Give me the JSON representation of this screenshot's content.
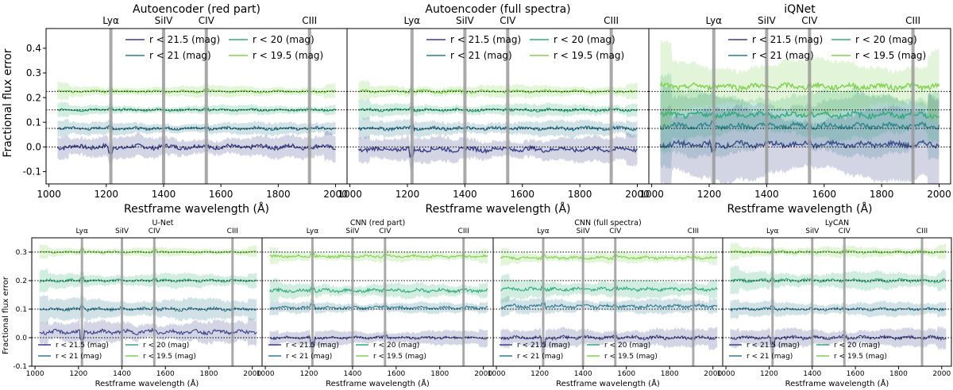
{
  "figure": {
    "ylabel_top": "Fractional flux error",
    "ylabel_bottom": "Fractional flux error",
    "xlabel": "Restframe wavelength (Å)"
  },
  "colors": {
    "r21_5": "#3b3f86",
    "r21": "#2f7a93",
    "r20": "#2eab7c",
    "r19_5": "#7ed24d",
    "line": "#9a9a9a"
  },
  "emission_lines": [
    {
      "label": "Lyα",
      "wavelength": 1216
    },
    {
      "label": "SiIV",
      "wavelength": 1400
    },
    {
      "label": "CIV",
      "wavelength": 1549
    },
    {
      "label": "CIII",
      "wavelength": 1909
    }
  ],
  "legend_labels": [
    "r < 21.5 (mag)",
    "r < 21 (mag)",
    "r < 20 (mag)",
    "r < 19.5 (mag)"
  ],
  "chart_data": [
    {
      "type": "line",
      "title": "Autoencoder (red part)",
      "xlabel": "Restframe wavelength (Å)",
      "ylabel": "Fractional flux error",
      "xlim": [
        990,
        2040
      ],
      "ylim": [
        -0.15,
        0.48
      ],
      "xticks": [
        1000,
        1200,
        1400,
        1600,
        1800,
        2000
      ],
      "yticks": [
        -0.1,
        0.0,
        0.1,
        0.2,
        0.3,
        0.4
      ],
      "ref_lines": [
        0.0,
        0.075,
        0.15,
        0.225
      ],
      "x_range": [
        1030,
        2000
      ],
      "series": [
        {
          "name": "r < 21.5 (mag)",
          "offset": 0.0,
          "mean": 0.0,
          "band": 0.035,
          "noise": 0.008
        },
        {
          "name": "r < 21 (mag)",
          "offset": 0.075,
          "mean": 0.0,
          "band": 0.02,
          "noise": 0.005
        },
        {
          "name": "r < 20 (mag)",
          "offset": 0.15,
          "mean": 0.0,
          "band": 0.015,
          "noise": 0.004
        },
        {
          "name": "r < 19.5 (mag)",
          "offset": 0.225,
          "mean": 0.0,
          "band": 0.018,
          "noise": 0.004
        }
      ]
    },
    {
      "type": "line",
      "title": "Autoencoder (full spectra)",
      "xlabel": "Restframe wavelength (Å)",
      "xlim": [
        990,
        2040
      ],
      "ylim": [
        -0.15,
        0.48
      ],
      "xticks": [
        1000,
        1200,
        1400,
        1600,
        1800,
        2000
      ],
      "yticks": [],
      "ref_lines": [
        0.0,
        0.075,
        0.15,
        0.225
      ],
      "x_range": [
        1030,
        2000
      ],
      "series": [
        {
          "name": "r < 21.5 (mag)",
          "offset": 0.0,
          "mean": -0.01,
          "band": 0.04,
          "noise": 0.008
        },
        {
          "name": "r < 21 (mag)",
          "offset": 0.075,
          "mean": 0.0,
          "band": 0.025,
          "noise": 0.006
        },
        {
          "name": "r < 20 (mag)",
          "offset": 0.15,
          "mean": 0.0,
          "band": 0.02,
          "noise": 0.005
        },
        {
          "name": "r < 19.5 (mag)",
          "offset": 0.225,
          "mean": 0.0,
          "band": 0.02,
          "noise": 0.005
        }
      ]
    },
    {
      "type": "line",
      "title": "iQNet",
      "xlabel": "Restframe wavelength (Å)",
      "xlim": [
        990,
        2040
      ],
      "ylim": [
        -0.15,
        0.48
      ],
      "xticks": [
        1000,
        1200,
        1400,
        1600,
        1800,
        2000
      ],
      "yticks": [],
      "ref_lines": [
        0.0,
        0.075,
        0.15,
        0.225
      ],
      "x_range": [
        1030,
        2000
      ],
      "series": [
        {
          "name": "r < 21.5 (mag)",
          "offset": 0.0,
          "mean": 0.01,
          "band": 0.12,
          "noise": 0.01
        },
        {
          "name": "r < 21 (mag)",
          "offset": 0.075,
          "mean": 0.01,
          "band": 0.1,
          "noise": 0.01
        },
        {
          "name": "r < 20 (mag)",
          "offset": 0.15,
          "mean": -0.02,
          "band": 0.08,
          "noise": 0.01
        },
        {
          "name": "r < 19.5 (mag)",
          "offset": 0.225,
          "mean": 0.02,
          "band": 0.09,
          "noise": 0.01
        }
      ]
    },
    {
      "type": "line",
      "title": "U-Net",
      "xlabel": "Restframe wavelength (Å)",
      "ylabel": "Fractional flux error",
      "xlim": [
        985,
        2045
      ],
      "ylim": [
        -0.1,
        0.35
      ],
      "xticks": [
        1000,
        1200,
        1400,
        1600,
        1800,
        2000
      ],
      "yticks": [
        -0.1,
        0.0,
        0.1,
        0.2,
        0.3
      ],
      "ref_lines": [
        0.0,
        0.1,
        0.2,
        0.3
      ],
      "x_range": [
        1020,
        2020
      ],
      "series": [
        {
          "name": "r < 21.5 (mag)",
          "offset": 0.0,
          "mean": 0.02,
          "band": 0.03,
          "noise": 0.006
        },
        {
          "name": "r < 21 (mag)",
          "offset": 0.1,
          "mean": 0.0,
          "band": 0.03,
          "noise": 0.005
        },
        {
          "name": "r < 20 (mag)",
          "offset": 0.2,
          "mean": 0.0,
          "band": 0.02,
          "noise": 0.004
        },
        {
          "name": "r < 19.5 (mag)",
          "offset": 0.3,
          "mean": 0.0,
          "band": 0.012,
          "noise": 0.003
        }
      ]
    },
    {
      "type": "line",
      "title": "CNN (red part)",
      "xlabel": "Restframe wavelength (Å)",
      "xlim": [
        985,
        2045
      ],
      "ylim": [
        -0.1,
        0.35
      ],
      "xticks": [
        1000,
        1200,
        1400,
        1600,
        1800,
        2000
      ],
      "yticks": [],
      "ref_lines": [
        0.0,
        0.1,
        0.2,
        0.3
      ],
      "x_range": [
        1020,
        2020
      ],
      "series": [
        {
          "name": "r < 21.5 (mag)",
          "offset": 0.0,
          "mean": 0.0,
          "band": 0.02,
          "noise": 0.004
        },
        {
          "name": "r < 21 (mag)",
          "offset": 0.1,
          "mean": 0.005,
          "band": 0.015,
          "noise": 0.004
        },
        {
          "name": "r < 20 (mag)",
          "offset": 0.2,
          "mean": -0.035,
          "band": 0.02,
          "noise": 0.005
        },
        {
          "name": "r < 19.5 (mag)",
          "offset": 0.3,
          "mean": -0.015,
          "band": 0.015,
          "noise": 0.004
        }
      ]
    },
    {
      "type": "line",
      "title": "CNN (full spectra)",
      "xlabel": "Restframe wavelength (Å)",
      "xlim": [
        985,
        2045
      ],
      "ylim": [
        -0.1,
        0.35
      ],
      "xticks": [
        1000,
        1200,
        1400,
        1600,
        1800,
        2000
      ],
      "yticks": [],
      "ref_lines": [
        0.0,
        0.1,
        0.2,
        0.3
      ],
      "x_range": [
        1020,
        2020
      ],
      "series": [
        {
          "name": "r < 21.5 (mag)",
          "offset": 0.0,
          "mean": 0.0,
          "band": 0.025,
          "noise": 0.005
        },
        {
          "name": "r < 21 (mag)",
          "offset": 0.1,
          "mean": 0.01,
          "band": 0.02,
          "noise": 0.005
        },
        {
          "name": "r < 20 (mag)",
          "offset": 0.2,
          "mean": -0.03,
          "band": 0.025,
          "noise": 0.005
        },
        {
          "name": "r < 19.5 (mag)",
          "offset": 0.3,
          "mean": -0.02,
          "band": 0.015,
          "noise": 0.004
        }
      ]
    },
    {
      "type": "line",
      "title": "LyCAN",
      "xlabel": "Restframe wavelength (Å)",
      "xlim": [
        985,
        2045
      ],
      "ylim": [
        -0.1,
        0.35
      ],
      "xticks": [
        1000,
        1200,
        1400,
        1600,
        1800,
        2000
      ],
      "yticks": [],
      "ref_lines": [
        0.0,
        0.1,
        0.2,
        0.3
      ],
      "x_range": [
        1020,
        2020
      ],
      "series": [
        {
          "name": "r < 21.5 (mag)",
          "offset": 0.0,
          "mean": 0.0,
          "band": 0.025,
          "noise": 0.005
        },
        {
          "name": "r < 21 (mag)",
          "offset": 0.1,
          "mean": 0.0,
          "band": 0.02,
          "noise": 0.004
        },
        {
          "name": "r < 20 (mag)",
          "offset": 0.2,
          "mean": 0.0,
          "band": 0.025,
          "noise": 0.005
        },
        {
          "name": "r < 19.5 (mag)",
          "offset": 0.3,
          "mean": 0.0,
          "band": 0.015,
          "noise": 0.004
        }
      ]
    }
  ]
}
